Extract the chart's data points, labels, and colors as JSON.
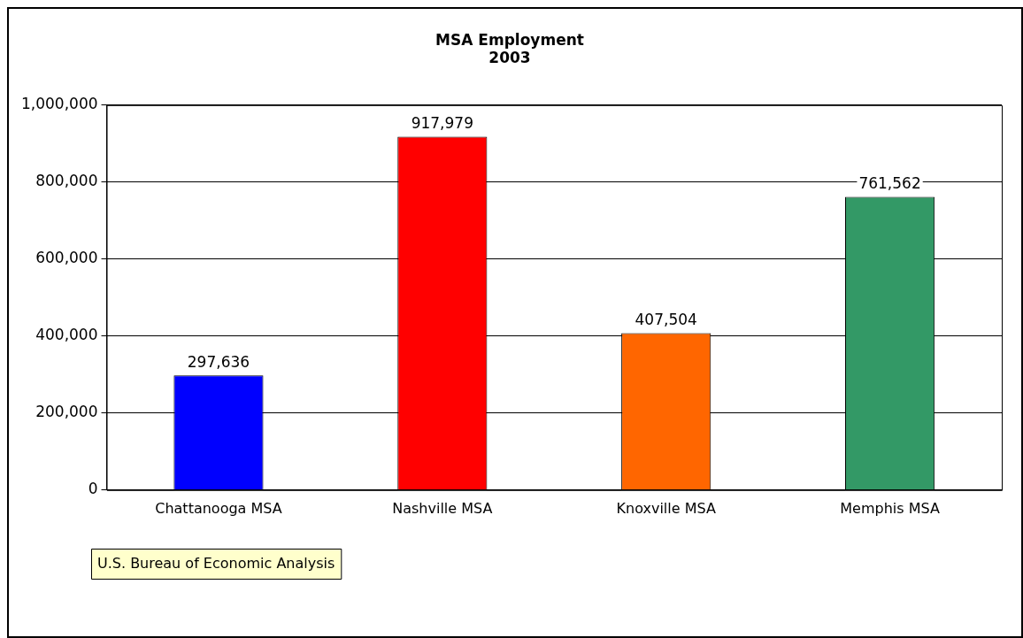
{
  "chart_data": {
    "type": "bar",
    "title": "MSA Employment",
    "subtitle": "2003",
    "categories": [
      "Chattanooga MSA",
      "Nashville MSA",
      "Knoxville MSA",
      "Memphis MSA"
    ],
    "values": [
      297636,
      917979,
      407504,
      761562
    ],
    "colors": [
      "#0000ff",
      "#ff0000",
      "#ff6600",
      "#339966"
    ],
    "value_labels": [
      "297,636",
      "917,979",
      "407,504",
      "761,562"
    ],
    "ylim": [
      0,
      1000000
    ],
    "yticks": [
      {
        "value": 0,
        "label": "0"
      },
      {
        "value": 200000,
        "label": "200,000"
      },
      {
        "value": 400000,
        "label": "400,000"
      },
      {
        "value": 600000,
        "label": "600,000"
      },
      {
        "value": 800000,
        "label": "800,000"
      },
      {
        "value": 1000000,
        "label": "1,000,000"
      }
    ],
    "grid": "y",
    "legend": false,
    "annotations": [
      "U.S. Bureau of Economic Analysis"
    ]
  }
}
